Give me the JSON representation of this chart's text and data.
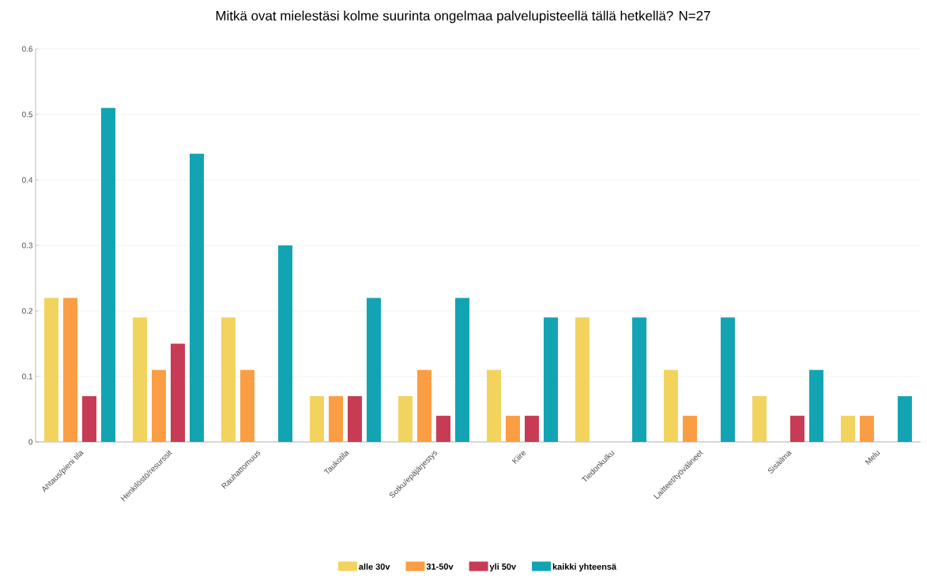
{
  "chart_data": {
    "type": "bar",
    "title": "Mitkä ovat mielestäsi kolme suurinta ongelmaa palvelupisteellä tällä hetkellä? N=27",
    "categories": [
      "Ahtaus/pieni tila",
      "Henkilöstö/resurssit",
      "Rauhattomuus",
      "Taukotila",
      "Sotku/epäjärjestys",
      "Kiire",
      "Tiedonkulku",
      "Laitteet/työvälineet",
      "Sisäilma",
      "Melu"
    ],
    "series": [
      {
        "name": "alle 30v",
        "color": "#f2d35e",
        "values": [
          0.22,
          0.19,
          0.19,
          0.07,
          0.07,
          0.11,
          0.19,
          0.11,
          0.07,
          0.04
        ]
      },
      {
        "name": "31-50v",
        "color": "#fb9d43",
        "values": [
          0.22,
          0.11,
          0.11,
          0.07,
          0.11,
          0.04,
          0,
          0.04,
          0,
          0.04
        ]
      },
      {
        "name": "yli 50v",
        "color": "#c73c54",
        "values": [
          0.07,
          0.15,
          0,
          0.07,
          0.04,
          0.04,
          0,
          0,
          0.04,
          0
        ]
      },
      {
        "name": "kaikki yhteensä",
        "color": "#13a4b4",
        "values": [
          0.51,
          0.44,
          0.3,
          0.22,
          0.22,
          0.19,
          0.19,
          0.19,
          0.11,
          0.07
        ]
      }
    ],
    "ylim": [
      0,
      0.6
    ],
    "yticks": [
      0,
      0.1,
      0.2,
      0.3,
      0.4,
      0.5,
      0.6
    ],
    "grid": "y",
    "legend": "bottom"
  }
}
